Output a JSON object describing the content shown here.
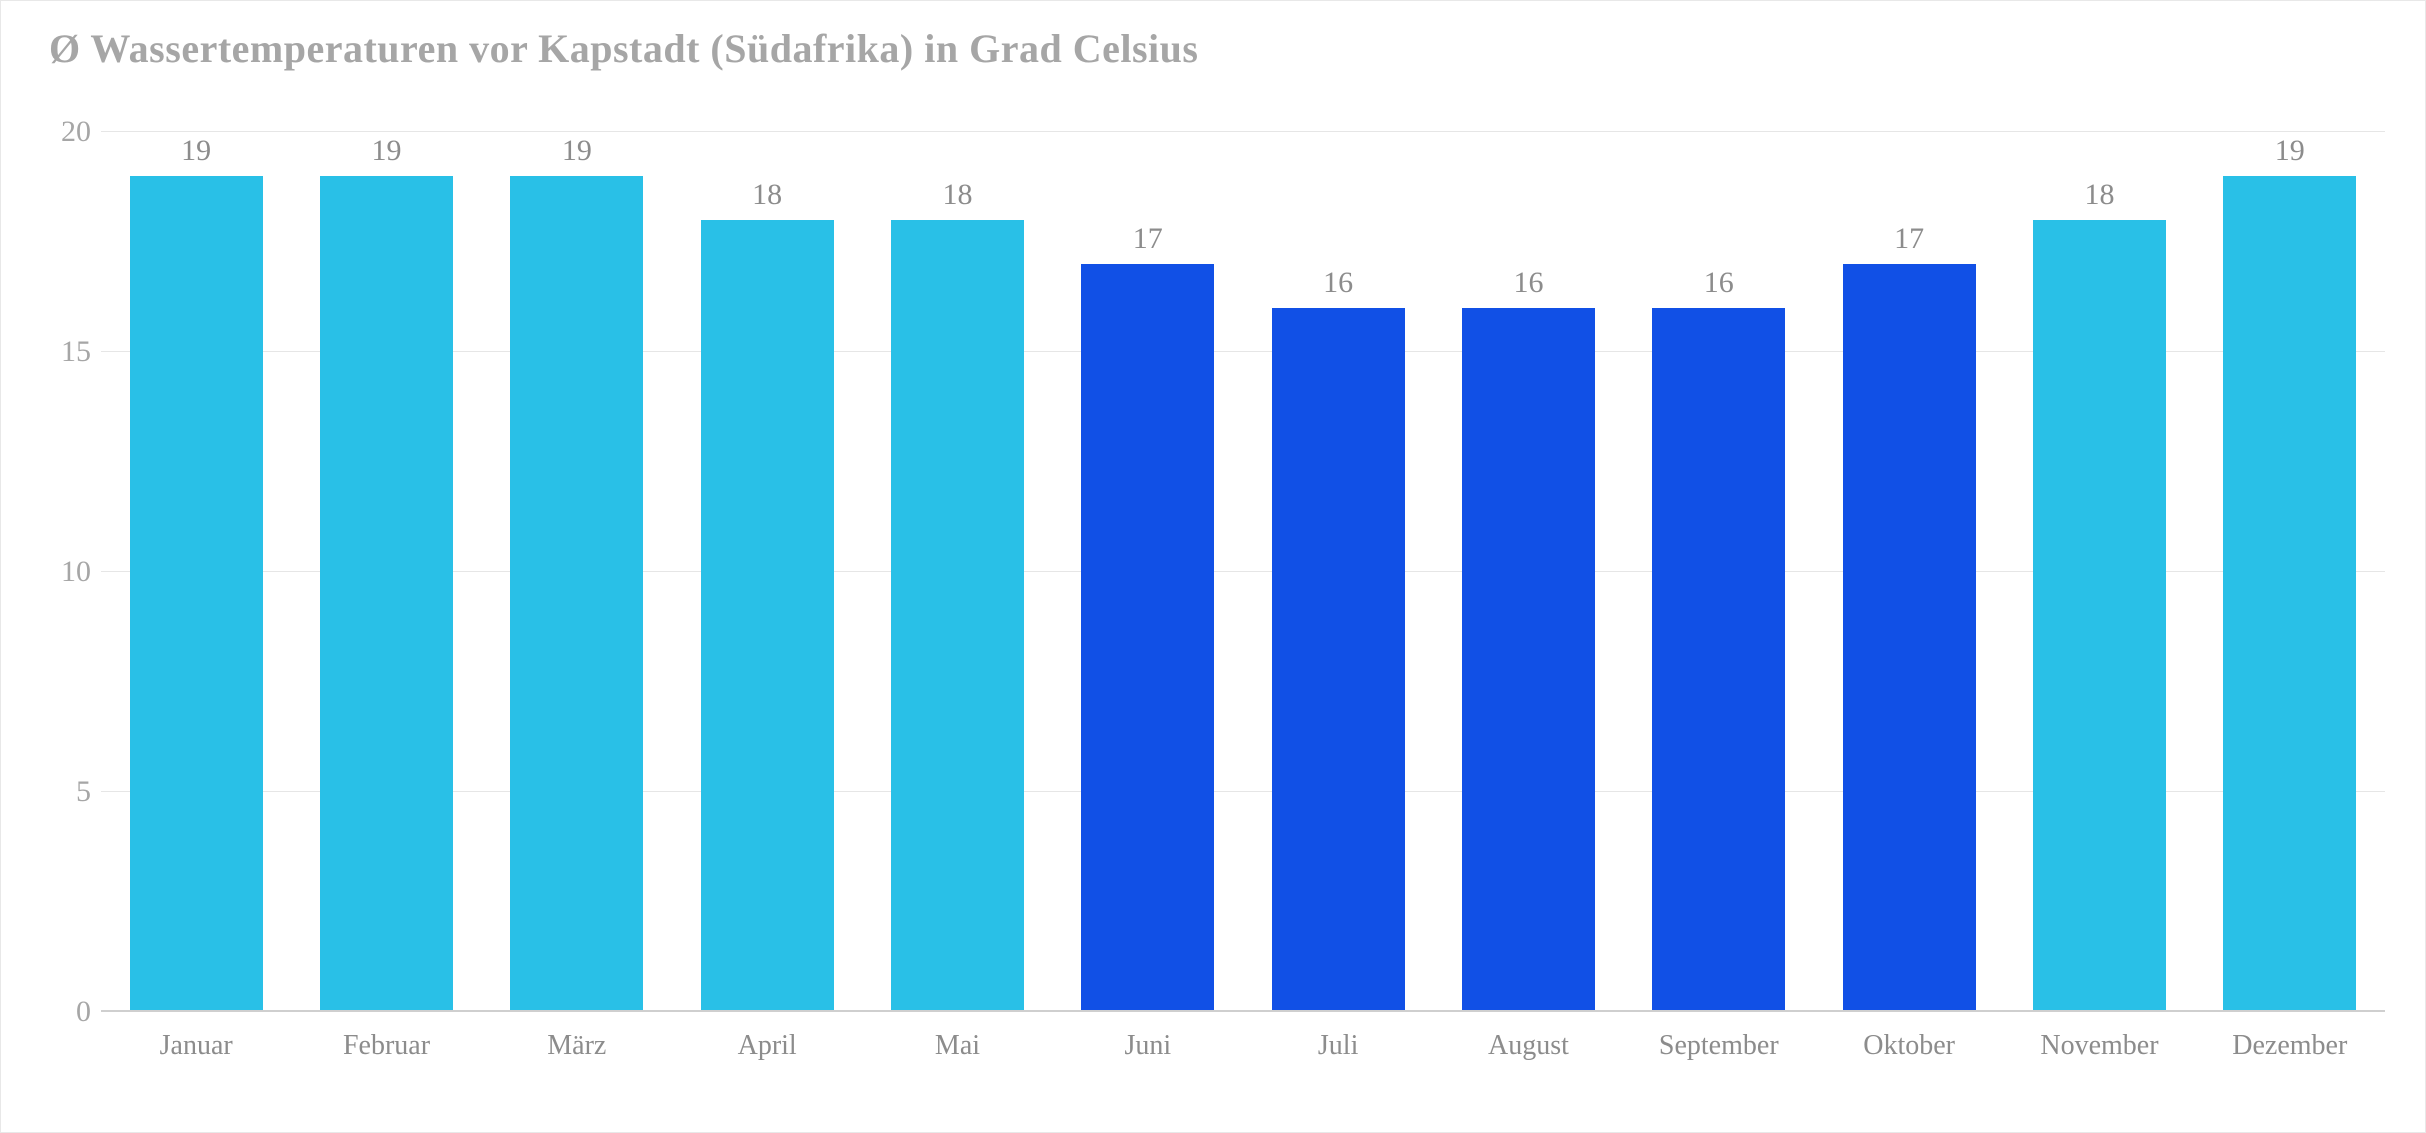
{
  "chart": {
    "type": "bar",
    "title": "Ø Wassertemperaturen vor Kapstadt (Südafrika) in Grad Celsius",
    "title_fontsize": 40,
    "title_color": "#a6a6a6",
    "categories": [
      "Januar",
      "Februar",
      "März",
      "April",
      "Mai",
      "Juni",
      "Juli",
      "August",
      "September",
      "Oktober",
      "November",
      "Dezember"
    ],
    "values": [
      19,
      19,
      19,
      18,
      18,
      17,
      16,
      16,
      16,
      17,
      18,
      19
    ],
    "bar_colors": [
      "#29c0e7",
      "#29c0e7",
      "#29c0e7",
      "#29c0e7",
      "#29c0e7",
      "#1150e6",
      "#1150e6",
      "#1150e6",
      "#1150e6",
      "#1150e6",
      "#29c0e7",
      "#29c0e7"
    ],
    "value_label_color": "#8c8c8c",
    "value_label_fontsize": 30,
    "x_label_color": "#8c8c8c",
    "x_label_fontsize": 28,
    "y_label_color": "#a6a6a6",
    "y_label_fontsize": 30,
    "ylim": [
      0,
      20
    ],
    "ytick_step": 5,
    "grid_color": "#e6e6e6",
    "baseline_color": "#cfcfcf",
    "background_color": "#ffffff",
    "bar_width": 0.7
  }
}
